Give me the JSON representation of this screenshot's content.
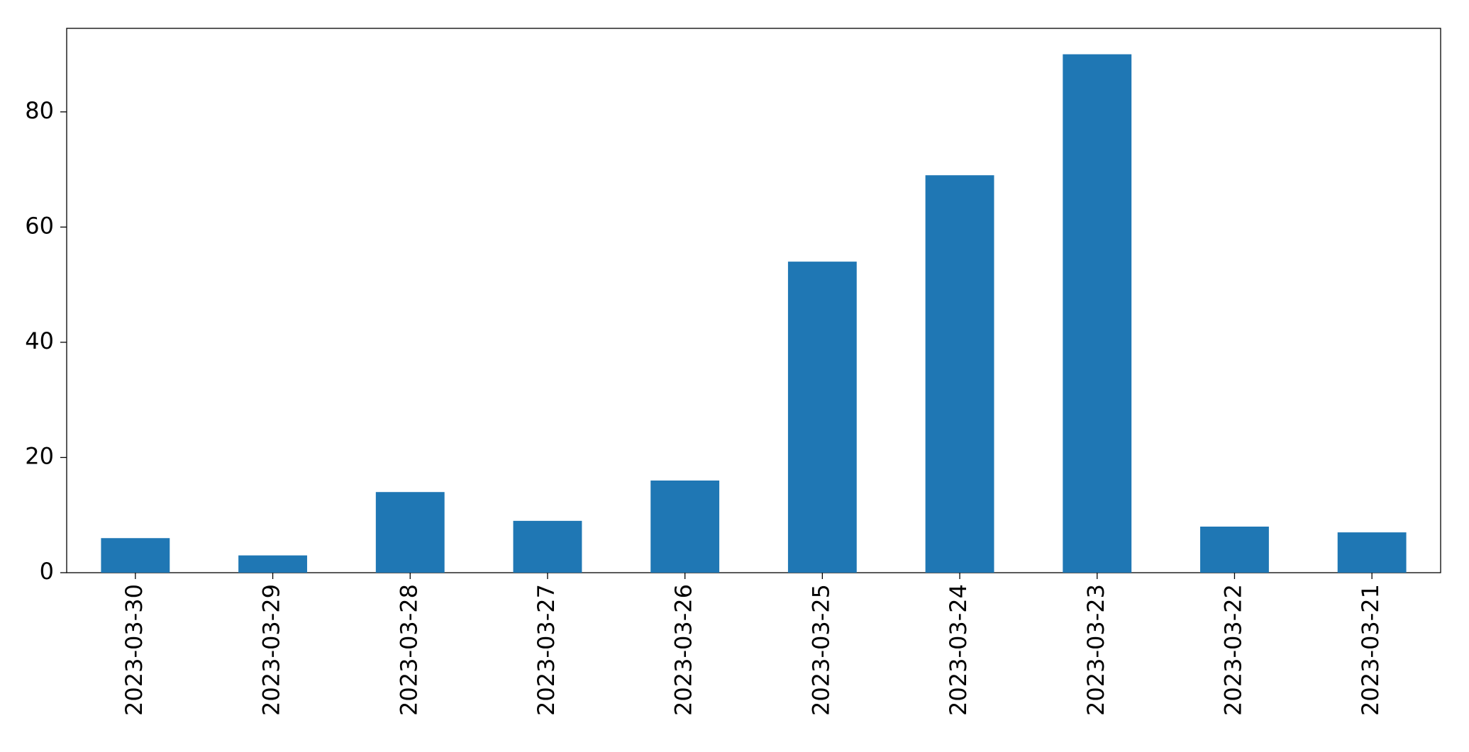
{
  "chart_data": {
    "type": "bar",
    "categories": [
      "2023-03-30",
      "2023-03-29",
      "2023-03-28",
      "2023-03-27",
      "2023-03-26",
      "2023-03-25",
      "2023-03-24",
      "2023-03-23",
      "2023-03-22",
      "2023-03-21"
    ],
    "values": [
      6,
      3,
      14,
      9,
      16,
      54,
      69,
      90,
      8,
      7
    ],
    "color": "#1f77b4",
    "ylim": [
      0,
      94.5
    ],
    "yticks": [
      0,
      20,
      40,
      60,
      80
    ],
    "grid": false
  }
}
